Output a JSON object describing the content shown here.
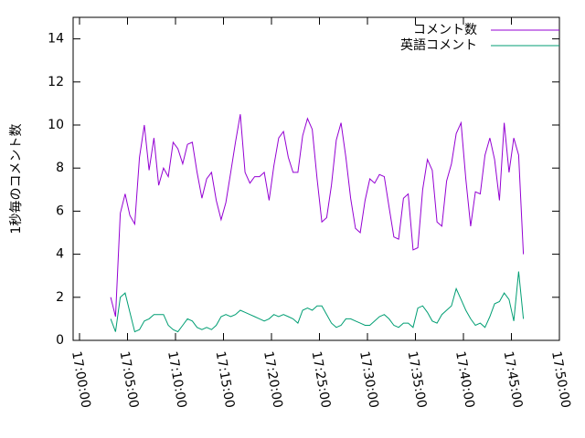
{
  "chart_data": {
    "type": "line",
    "ylabel": "1秒毎のコメント数",
    "xlim": [
      "16:59:20",
      "17:50:00"
    ],
    "xticks": [
      "17:00:00",
      "17:05:00",
      "17:10:00",
      "17:15:00",
      "17:20:00",
      "17:25:00",
      "17:30:00",
      "17:35:00",
      "17:40:00",
      "17:45:00",
      "17:50:00"
    ],
    "ylim": [
      0,
      15
    ],
    "yticks": [
      0,
      2,
      4,
      6,
      8,
      10,
      12,
      14
    ],
    "legend": "top-right",
    "x": [
      "17:03:15",
      "17:03:45",
      "17:04:15",
      "17:04:45",
      "17:05:15",
      "17:05:45",
      "17:06:15",
      "17:06:45",
      "17:07:15",
      "17:07:45",
      "17:08:15",
      "17:08:45",
      "17:09:15",
      "17:09:45",
      "17:10:15",
      "17:10:45",
      "17:11:15",
      "17:11:45",
      "17:12:15",
      "17:12:45",
      "17:13:15",
      "17:13:45",
      "17:14:15",
      "17:14:45",
      "17:15:15",
      "17:15:45",
      "17:16:15",
      "17:16:45",
      "17:17:15",
      "17:17:45",
      "17:18:15",
      "17:18:45",
      "17:19:15",
      "17:19:45",
      "17:20:15",
      "17:20:45",
      "17:21:15",
      "17:21:45",
      "17:22:15",
      "17:22:45",
      "17:23:15",
      "17:23:45",
      "17:24:15",
      "17:24:45",
      "17:25:15",
      "17:25:45",
      "17:26:15",
      "17:26:45",
      "17:27:15",
      "17:27:45",
      "17:28:15",
      "17:28:45",
      "17:29:15",
      "17:29:45",
      "17:30:15",
      "17:30:45",
      "17:31:15",
      "17:31:45",
      "17:32:15",
      "17:32:45",
      "17:33:15",
      "17:33:45",
      "17:34:15",
      "17:34:45",
      "17:35:15",
      "17:35:45",
      "17:36:15",
      "17:36:45",
      "17:37:15",
      "17:37:45",
      "17:38:15",
      "17:38:45",
      "17:39:15",
      "17:39:45",
      "17:40:15",
      "17:40:45",
      "17:41:15",
      "17:41:45",
      "17:42:15",
      "17:42:45",
      "17:43:15",
      "17:43:45",
      "17:44:15",
      "17:44:45",
      "17:45:15",
      "17:45:45",
      "17:46:15"
    ],
    "series": [
      {
        "name": "コメント数",
        "color": "#9400d3",
        "values": [
          2.0,
          1.1,
          5.9,
          6.8,
          5.8,
          5.4,
          8.5,
          10.0,
          7.9,
          9.4,
          7.2,
          8.0,
          7.6,
          9.2,
          8.9,
          8.2,
          9.1,
          9.2,
          7.8,
          6.6,
          7.5,
          7.8,
          6.5,
          5.6,
          6.4,
          7.8,
          9.2,
          10.5,
          7.8,
          7.3,
          7.6,
          7.6,
          7.8,
          6.5,
          8.1,
          9.4,
          9.7,
          8.5,
          7.8,
          7.8,
          9.5,
          10.3,
          9.8,
          7.5,
          5.5,
          5.7,
          7.2,
          9.3,
          10.1,
          8.5,
          6.6,
          5.2,
          5.0,
          6.5,
          7.5,
          7.3,
          7.7,
          7.6,
          6.2,
          4.8,
          4.7,
          6.6,
          6.8,
          4.2,
          4.3,
          7.0,
          8.4,
          7.9,
          5.5,
          5.3,
          7.4,
          8.2,
          9.6,
          10.1,
          7.5,
          5.3,
          6.9,
          6.8,
          8.6,
          9.4,
          8.4,
          6.5,
          10.1,
          7.8,
          9.4,
          8.6,
          4.0
        ]
      },
      {
        "name": "英語コメント",
        "color": "#009e73",
        "values": [
          1.0,
          0.4,
          2.0,
          2.2,
          1.3,
          0.4,
          0.5,
          0.9,
          1.0,
          1.2,
          1.2,
          1.2,
          0.7,
          0.5,
          0.4,
          0.7,
          1.0,
          0.9,
          0.6,
          0.5,
          0.6,
          0.5,
          0.7,
          1.1,
          1.2,
          1.1,
          1.2,
          1.4,
          1.3,
          1.2,
          1.1,
          1.0,
          0.9,
          1.0,
          1.2,
          1.1,
          1.2,
          1.1,
          1.0,
          0.8,
          1.4,
          1.5,
          1.4,
          1.6,
          1.6,
          1.2,
          0.8,
          0.6,
          0.7,
          1.0,
          1.0,
          0.9,
          0.8,
          0.7,
          0.7,
          0.9,
          1.1,
          1.2,
          1.0,
          0.7,
          0.6,
          0.8,
          0.8,
          0.6,
          1.5,
          1.6,
          1.3,
          0.9,
          0.8,
          1.2,
          1.4,
          1.6,
          2.4,
          1.9,
          1.4,
          1.0,
          0.7,
          0.8,
          0.6,
          1.1,
          1.7,
          1.8,
          2.2,
          1.9,
          0.9,
          3.2,
          1.0
        ]
      }
    ]
  }
}
